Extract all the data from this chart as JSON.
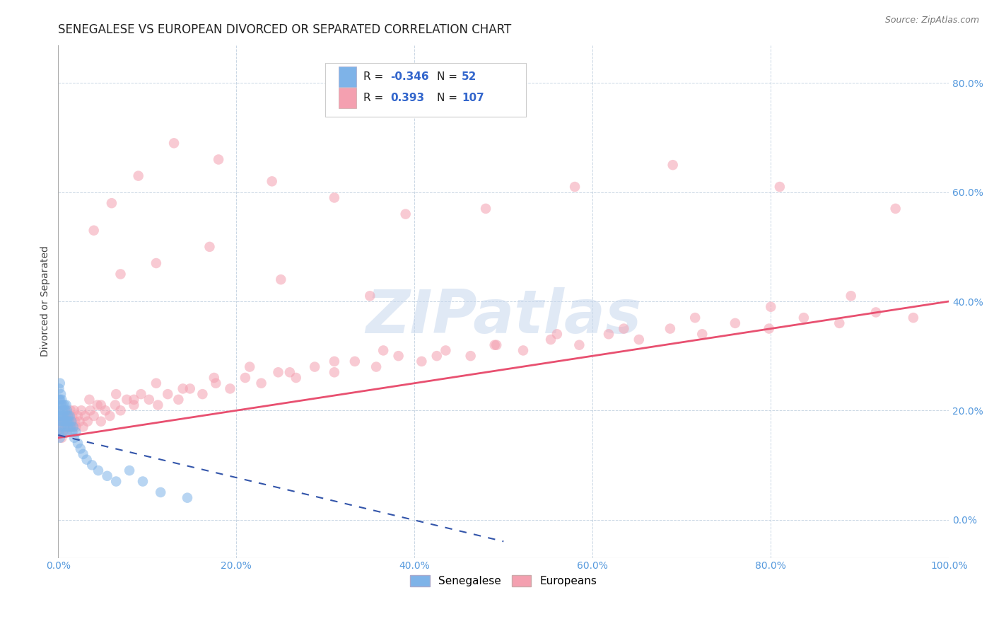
{
  "title": "SENEGALESE VS EUROPEAN DIVORCED OR SEPARATED CORRELATION CHART",
  "source_text": "Source: ZipAtlas.com",
  "ylabel": "Divorced or Separated",
  "xlim": [
    0.0,
    1.0
  ],
  "ylim": [
    -0.07,
    0.87
  ],
  "xticks": [
    0.0,
    0.2,
    0.4,
    0.6,
    0.8,
    1.0
  ],
  "xtick_labels": [
    "0.0%",
    "20.0%",
    "40.0%",
    "60.0%",
    "80.0%",
    "100.0%"
  ],
  "yticks": [
    0.0,
    0.2,
    0.4,
    0.6,
    0.8
  ],
  "ytick_labels": [
    "0.0%",
    "20.0%",
    "40.0%",
    "60.0%",
    "80.0%"
  ],
  "blue_color": "#7EB3E8",
  "pink_color": "#F4A0B0",
  "blue_line_color": "#3355AA",
  "pink_line_color": "#E85070",
  "tick_color": "#5599DD",
  "watermark": "ZIPatlas",
  "watermark_color": "#C8D8EE",
  "background_color": "#FFFFFF",
  "title_fontsize": 12,
  "axis_fontsize": 10,
  "tick_fontsize": 10,
  "pink_line_x0": 0.0,
  "pink_line_y0": 0.15,
  "pink_line_x1": 1.0,
  "pink_line_y1": 0.4,
  "blue_line_x0": 0.0,
  "blue_line_y0": 0.155,
  "blue_line_x1": 0.5,
  "blue_line_y1": -0.04,
  "senegalese_x": [
    0.001,
    0.001,
    0.001,
    0.001,
    0.002,
    0.002,
    0.002,
    0.002,
    0.002,
    0.003,
    0.003,
    0.003,
    0.003,
    0.004,
    0.004,
    0.004,
    0.005,
    0.005,
    0.005,
    0.006,
    0.006,
    0.007,
    0.007,
    0.007,
    0.008,
    0.008,
    0.009,
    0.009,
    0.01,
    0.01,
    0.011,
    0.011,
    0.012,
    0.013,
    0.014,
    0.015,
    0.016,
    0.017,
    0.018,
    0.02,
    0.022,
    0.025,
    0.028,
    0.032,
    0.038,
    0.045,
    0.055,
    0.065,
    0.08,
    0.095,
    0.115,
    0.145
  ],
  "senegalese_y": [
    0.22,
    0.19,
    0.16,
    0.24,
    0.2,
    0.18,
    0.22,
    0.15,
    0.25,
    0.19,
    0.21,
    0.17,
    0.23,
    0.2,
    0.18,
    0.22,
    0.19,
    0.21,
    0.16,
    0.2,
    0.18,
    0.21,
    0.19,
    0.17,
    0.2,
    0.18,
    0.21,
    0.16,
    0.2,
    0.18,
    0.19,
    0.17,
    0.18,
    0.19,
    0.17,
    0.18,
    0.16,
    0.17,
    0.15,
    0.16,
    0.14,
    0.13,
    0.12,
    0.11,
    0.1,
    0.09,
    0.08,
    0.07,
    0.09,
    0.07,
    0.05,
    0.04
  ],
  "european_x": [
    0.001,
    0.002,
    0.003,
    0.004,
    0.005,
    0.006,
    0.007,
    0.008,
    0.009,
    0.01,
    0.011,
    0.012,
    0.013,
    0.014,
    0.015,
    0.016,
    0.017,
    0.018,
    0.019,
    0.02,
    0.022,
    0.024,
    0.026,
    0.028,
    0.03,
    0.033,
    0.036,
    0.04,
    0.044,
    0.048,
    0.053,
    0.058,
    0.064,
    0.07,
    0.077,
    0.085,
    0.093,
    0.102,
    0.112,
    0.123,
    0.135,
    0.148,
    0.162,
    0.177,
    0.193,
    0.21,
    0.228,
    0.247,
    0.267,
    0.288,
    0.31,
    0.333,
    0.357,
    0.382,
    0.408,
    0.435,
    0.463,
    0.492,
    0.522,
    0.553,
    0.585,
    0.618,
    0.652,
    0.687,
    0.723,
    0.76,
    0.798,
    0.837,
    0.877,
    0.918,
    0.96,
    0.035,
    0.048,
    0.065,
    0.085,
    0.11,
    0.14,
    0.175,
    0.215,
    0.26,
    0.31,
    0.365,
    0.425,
    0.49,
    0.56,
    0.635,
    0.715,
    0.8,
    0.89,
    0.04,
    0.06,
    0.09,
    0.13,
    0.18,
    0.24,
    0.31,
    0.39,
    0.48,
    0.58,
    0.69,
    0.81,
    0.94,
    0.07,
    0.11,
    0.17,
    0.25,
    0.35
  ],
  "european_y": [
    0.16,
    0.17,
    0.18,
    0.15,
    0.19,
    0.16,
    0.18,
    0.17,
    0.19,
    0.16,
    0.18,
    0.19,
    0.17,
    0.2,
    0.18,
    0.19,
    0.17,
    0.2,
    0.18,
    0.17,
    0.19,
    0.18,
    0.2,
    0.17,
    0.19,
    0.18,
    0.2,
    0.19,
    0.21,
    0.18,
    0.2,
    0.19,
    0.21,
    0.2,
    0.22,
    0.21,
    0.23,
    0.22,
    0.21,
    0.23,
    0.22,
    0.24,
    0.23,
    0.25,
    0.24,
    0.26,
    0.25,
    0.27,
    0.26,
    0.28,
    0.27,
    0.29,
    0.28,
    0.3,
    0.29,
    0.31,
    0.3,
    0.32,
    0.31,
    0.33,
    0.32,
    0.34,
    0.33,
    0.35,
    0.34,
    0.36,
    0.35,
    0.37,
    0.36,
    0.38,
    0.37,
    0.22,
    0.21,
    0.23,
    0.22,
    0.25,
    0.24,
    0.26,
    0.28,
    0.27,
    0.29,
    0.31,
    0.3,
    0.32,
    0.34,
    0.35,
    0.37,
    0.39,
    0.41,
    0.53,
    0.58,
    0.63,
    0.69,
    0.66,
    0.62,
    0.59,
    0.56,
    0.57,
    0.61,
    0.65,
    0.61,
    0.57,
    0.45,
    0.47,
    0.5,
    0.44,
    0.41
  ]
}
